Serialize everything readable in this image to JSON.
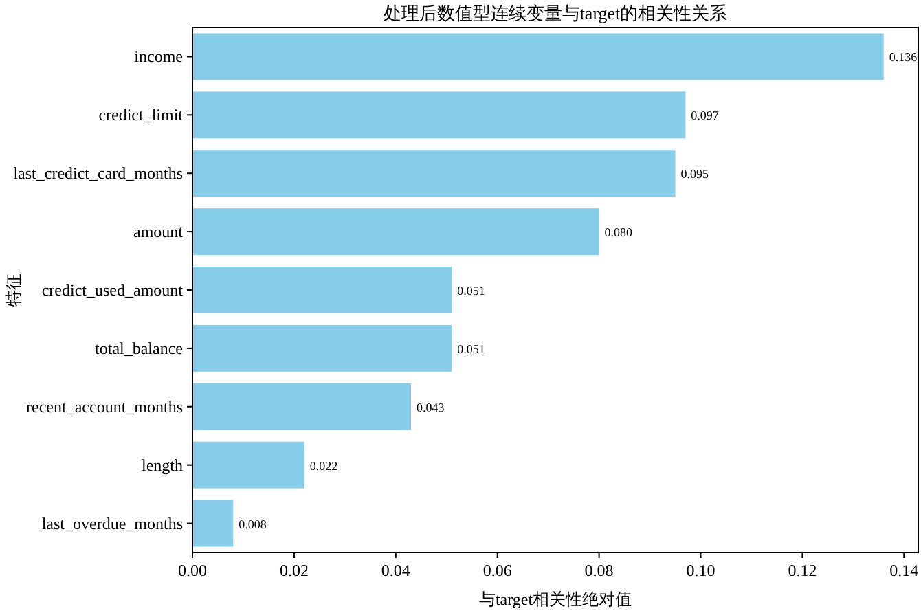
{
  "chart_data": {
    "type": "bar",
    "orientation": "horizontal",
    "title": "处理后数值型连续变量与target的相关性关系",
    "xlabel": "与target相关性绝对值",
    "ylabel": "特征",
    "categories": [
      "income",
      "credict_limit",
      "last_credict_card_months",
      "amount",
      "credict_used_amount",
      "total_balance",
      "recent_account_months",
      "length",
      "last_overdue_months"
    ],
    "values": [
      0.136,
      0.097,
      0.095,
      0.08,
      0.051,
      0.051,
      0.043,
      0.022,
      0.008
    ],
    "value_labels": [
      "0.136",
      "0.097",
      "0.095",
      "0.080",
      "0.051",
      "0.051",
      "0.043",
      "0.022",
      "0.008"
    ],
    "color": "#87ceeb",
    "xlim": [
      0,
      0.1428
    ],
    "xticks": [
      {
        "value": 0,
        "label": "0.00"
      },
      {
        "value": 0.02,
        "label": "0.02"
      },
      {
        "value": 0.04,
        "label": "0.04"
      },
      {
        "value": 0.06,
        "label": "0.06"
      },
      {
        "value": 0.08,
        "label": "0.08"
      },
      {
        "value": 0.1,
        "label": "0.10"
      },
      {
        "value": 0.12,
        "label": "0.12"
      },
      {
        "value": 0.14,
        "label": "0.14"
      }
    ]
  }
}
